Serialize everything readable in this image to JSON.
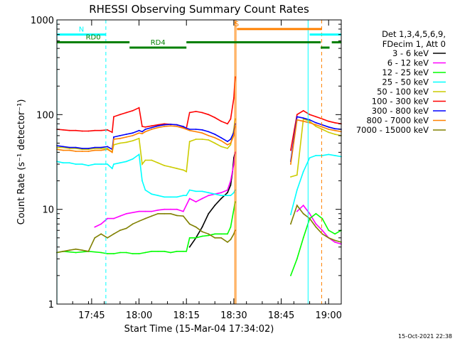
{
  "chart_data": {
    "type": "line",
    "title": "RHESSI Observing Summary Count Rates",
    "xlabel": "Start Time (15-Mar-04 17:34:02)",
    "ylabel": "Count Rate (s⁻¹ detector⁻¹)",
    "xlim": [
      34,
      124
    ],
    "ylim": [
      1,
      1000
    ],
    "yscale": "log",
    "x_units": "minutes after 17:00 UT",
    "x_ticks": [
      {
        "x": 45,
        "label": "17:45"
      },
      {
        "x": 60,
        "label": "18:00"
      },
      {
        "x": 75,
        "label": "18:15"
      },
      {
        "x": 90,
        "label": "18:30"
      },
      {
        "x": 105,
        "label": "18:45"
      },
      {
        "x": 120,
        "label": "19:00"
      }
    ],
    "y_ticks": [
      {
        "y": 1,
        "label": "1"
      },
      {
        "y": 10,
        "label": "10"
      },
      {
        "y": 100,
        "label": "100"
      },
      {
        "y": 1000,
        "label": "1000"
      }
    ],
    "legend": {
      "placement": "right",
      "header": [
        "Det 1,3,4,5,6,9,",
        "FDecim 1, Att 0"
      ]
    },
    "series": [
      {
        "name": "3 - 6 keV",
        "color": "#000000",
        "x": [
          76,
          78,
          80,
          82,
          84,
          86,
          88,
          89,
          89.6,
          90,
          90.4
        ],
        "y": [
          4,
          5,
          6.5,
          9,
          11,
          13,
          15,
          18,
          25,
          35,
          40
        ]
      },
      {
        "name": "6 - 12 keV",
        "color": "#ff00ff",
        "x": [
          46,
          48,
          50,
          52,
          54,
          56,
          60,
          62,
          64,
          66,
          68,
          70,
          72,
          74,
          76,
          78,
          80,
          82,
          84,
          86,
          88,
          89,
          90,
          90.4,
          110,
          112,
          114,
          116,
          118,
          120,
          122,
          124
        ],
        "y": [
          6.5,
          7,
          8,
          8,
          8.5,
          9,
          9.5,
          9.5,
          9.5,
          9.8,
          10,
          10,
          10,
          9.5,
          13,
          12,
          13,
          14,
          14.5,
          15,
          16,
          20,
          30,
          40,
          9.5,
          11,
          9,
          7,
          6,
          5,
          4.5,
          4.3
        ]
      },
      {
        "name": "12 - 25 keV",
        "color": "#00ff00",
        "x": [
          34,
          36,
          40,
          44,
          48,
          50,
          52,
          54,
          56,
          58,
          60,
          62,
          64,
          66,
          68,
          70,
          72,
          74,
          75,
          76,
          78,
          80,
          82,
          84,
          86,
          88,
          89,
          90,
          90.4,
          108,
          110,
          112,
          114,
          116,
          118,
          120,
          122,
          124
        ],
        "y": [
          3.5,
          3.6,
          3.5,
          3.6,
          3.5,
          3.4,
          3.4,
          3.5,
          3.5,
          3.4,
          3.4,
          3.5,
          3.6,
          3.6,
          3.6,
          3.5,
          3.6,
          3.6,
          3.6,
          5,
          5,
          5.2,
          5.3,
          5.5,
          5.5,
          5.5,
          6.5,
          10,
          12,
          2,
          3,
          5,
          8,
          9,
          8,
          6,
          5.5,
          6
        ]
      },
      {
        "name": "25 - 50 keV",
        "color": "#00ffff",
        "x": [
          34,
          36,
          38,
          40,
          42,
          44,
          46,
          48,
          50,
          51.5,
          52,
          54,
          56,
          58,
          60,
          61,
          62,
          64,
          66,
          68,
          70,
          72,
          74,
          75,
          76,
          78,
          80,
          82,
          84,
          86,
          88,
          89,
          90,
          90.4,
          108,
          110,
          112,
          114,
          116,
          118,
          120,
          122,
          124
        ],
        "y": [
          32,
          31,
          31,
          30,
          30,
          29,
          30,
          30,
          30,
          27,
          30,
          31,
          32,
          34,
          38,
          20,
          16,
          14.5,
          14,
          13.5,
          13.5,
          13.5,
          14,
          14,
          16,
          15.5,
          15.5,
          15,
          14.5,
          14,
          14,
          14,
          15,
          16,
          8.8,
          16,
          25,
          35,
          37,
          37,
          38,
          37,
          36
        ]
      },
      {
        "name": "50 - 100 keV",
        "color": "#cccc00",
        "x": [
          34,
          36,
          38,
          40,
          42,
          44,
          46,
          48,
          50,
          51.5,
          52,
          54,
          56,
          58,
          60,
          61,
          62,
          64,
          66,
          68,
          70,
          72,
          74,
          75,
          76,
          78,
          80,
          82,
          84,
          86,
          88,
          89,
          90,
          90.4,
          108,
          110,
          112,
          114,
          116,
          118,
          120,
          122,
          124
        ],
        "y": [
          45,
          45,
          44,
          44,
          43,
          43,
          44,
          44,
          44,
          40,
          48,
          50,
          51,
          53,
          56,
          30,
          33,
          33,
          31,
          29,
          28,
          27,
          26,
          25,
          52,
          55,
          55,
          54,
          50,
          46,
          44,
          48,
          70,
          90,
          22,
          23,
          90,
          85,
          75,
          70,
          65,
          62,
          60
        ]
      },
      {
        "name": "100 - 300 keV",
        "color": "#ff0000",
        "x": [
          34,
          36,
          38,
          40,
          42,
          44,
          46,
          48,
          50,
          51.5,
          52,
          54,
          56,
          58,
          60,
          61,
          62,
          64,
          66,
          68,
          70,
          72,
          74,
          75,
          76,
          78,
          80,
          82,
          84,
          86,
          88,
          89,
          90,
          90.4,
          108,
          110,
          112,
          114,
          116,
          118,
          120,
          122,
          124
        ],
        "y": [
          70,
          69,
          68,
          68,
          67,
          67,
          68,
          68,
          69,
          65,
          95,
          100,
          105,
          110,
          118,
          75,
          74,
          76,
          78,
          80,
          79,
          78,
          74,
          72,
          105,
          108,
          105,
          100,
          93,
          85,
          80,
          90,
          150,
          250,
          42,
          100,
          110,
          100,
          95,
          90,
          85,
          82,
          80
        ]
      },
      {
        "name": "300 - 800 keV",
        "color": "#0000ff",
        "x": [
          34,
          36,
          38,
          40,
          42,
          44,
          46,
          48,
          50,
          51.5,
          52,
          54,
          56,
          58,
          60,
          61,
          62,
          64,
          66,
          68,
          70,
          72,
          74,
          75,
          76,
          78,
          80,
          82,
          84,
          86,
          88,
          89,
          90,
          90.4,
          108,
          110,
          112,
          114,
          116,
          118,
          120,
          122,
          124
        ],
        "y": [
          47,
          46,
          45,
          45,
          44,
          44,
          45,
          45,
          46,
          43,
          58,
          60,
          62,
          64,
          68,
          66,
          70,
          73,
          76,
          78,
          79,
          78,
          75,
          72,
          70,
          70,
          69,
          66,
          62,
          57,
          52,
          55,
          65,
          80,
          32,
          95,
          92,
          88,
          82,
          78,
          74,
          71,
          70
        ]
      },
      {
        "name": "800 - 7000 keV",
        "color": "#ff8000",
        "x": [
          34,
          36,
          38,
          40,
          42,
          44,
          46,
          48,
          50,
          51.5,
          52,
          54,
          56,
          58,
          60,
          61,
          62,
          64,
          66,
          68,
          70,
          72,
          74,
          75,
          76,
          78,
          80,
          82,
          84,
          86,
          88,
          89,
          90,
          90.4,
          108,
          110,
          112,
          114,
          116,
          118,
          120,
          122,
          124
        ],
        "y": [
          43,
          42,
          42,
          41,
          41,
          41,
          42,
          42,
          43,
          40,
          55,
          56,
          58,
          60,
          64,
          63,
          66,
          70,
          73,
          75,
          76,
          75,
          72,
          70,
          68,
          66,
          64,
          60,
          57,
          53,
          48,
          50,
          60,
          75,
          30,
          88,
          85,
          82,
          78,
          74,
          70,
          68,
          66
        ]
      },
      {
        "name": "7000 - 15000 keV",
        "color": "#808000",
        "x": [
          34,
          36,
          38,
          40,
          42,
          44,
          46,
          48,
          50,
          52,
          54,
          56,
          58,
          60,
          62,
          64,
          66,
          68,
          70,
          72,
          74,
          76,
          78,
          80,
          82,
          84,
          86,
          88,
          89,
          90,
          90.4,
          108,
          110,
          112,
          114,
          116,
          118,
          120,
          122,
          124
        ],
        "y": [
          3.5,
          3.6,
          3.7,
          3.8,
          3.7,
          3.6,
          5,
          5.5,
          5,
          5.5,
          6,
          6.3,
          7,
          7.5,
          8,
          8.5,
          9,
          9,
          9,
          8.6,
          8.5,
          7,
          6.5,
          5.8,
          5.5,
          5,
          5,
          4.5,
          4.8,
          5.5,
          6,
          7,
          11,
          9,
          8,
          6.5,
          5.5,
          5,
          4.7,
          4.5
        ]
      }
    ],
    "markers": {
      "vertical_lines": [
        {
          "x": 34.03,
          "color": "#00ffff",
          "style": "solid"
        },
        {
          "x": 49.5,
          "color": "#00ffff",
          "style": "dashed"
        },
        {
          "x": 90.3,
          "color": "#ff8000",
          "style": "solid"
        },
        {
          "x": 90.7,
          "color": "#ff8000",
          "style": "solid"
        },
        {
          "x": 113.5,
          "color": "#00ffff",
          "style": "solid"
        },
        {
          "x": 117.8,
          "color": "#ff8000",
          "style": "dashed"
        },
        {
          "x": 124,
          "color": "#00ffff",
          "style": "dashed"
        }
      ],
      "status_bars": [
        {
          "x0": 34,
          "x1": 49.5,
          "y": 700,
          "color": "#00ffff",
          "label": "N"
        },
        {
          "x0": 114,
          "x1": 124,
          "y": 700,
          "color": "#00ffff"
        },
        {
          "x0": 91,
          "x1": 117.8,
          "y": 800,
          "color": "#ff8000",
          "label": "S"
        },
        {
          "x0": 34,
          "x1": 57,
          "y": 580,
          "color": "#008000",
          "label": "RD0"
        },
        {
          "x0": 57,
          "x1": 75,
          "y": 510,
          "color": "#008000",
          "label": "RD4"
        },
        {
          "x0": 75,
          "x1": 117.5,
          "y": 580,
          "color": "#008000"
        },
        {
          "x0": 117.5,
          "x1": 120.3,
          "y": 510,
          "color": "#008000"
        },
        {
          "x0": 121,
          "x1": 124,
          "y": 580,
          "color": "#008000"
        }
      ]
    }
  },
  "timestamp": "15-Oct-2021 22:38"
}
